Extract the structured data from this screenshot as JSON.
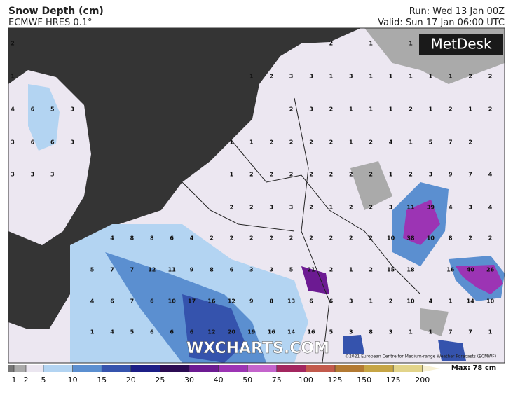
{
  "header": {
    "title": "Snow Depth (cm)",
    "model": "ECMWF HRES 0.1°",
    "run": "Run: Wed 13 Jan 00Z",
    "valid": "Valid: Sun 17 Jan 06:00 UTC"
  },
  "logo": "MetDesk",
  "watermark": "WXCHARTS.COM",
  "copyright": "©2021 European Centre for Medium-range Weather Forecasts (ECMWF)",
  "max_label": "Max: 78 cm",
  "scale": {
    "ticks": [
      1,
      2,
      5,
      10,
      15,
      20,
      25,
      30,
      40,
      50,
      75,
      100,
      125,
      150,
      175,
      200
    ],
    "colors": [
      "#777777",
      "#aaaaaa",
      "#ebe6f0",
      "#b3d4f2",
      "#5b8fd0",
      "#3553ad",
      "#1c1e86",
      "#2b0b52",
      "#6c1a92",
      "#9c34b4",
      "#c464cc",
      "#a3265f",
      "#c25a4c",
      "#b37a33",
      "#c6a545",
      "#e2d48a",
      "#f7f0d2"
    ]
  },
  "grid": {
    "rows": [
      [
        2,
        null,
        null,
        null,
        null,
        null,
        null,
        null,
        null,
        null,
        null,
        null,
        null,
        null,
        null,
        null,
        2,
        null,
        1,
        null,
        1,
        null,
        null,
        null,
        null
      ],
      [
        1,
        null,
        null,
        null,
        null,
        null,
        null,
        null,
        null,
        null,
        null,
        null,
        1,
        2,
        3,
        3,
        1,
        3,
        1,
        1,
        1,
        1,
        1,
        2,
        2
      ],
      [
        4,
        6,
        5,
        3,
        null,
        null,
        null,
        null,
        null,
        null,
        null,
        null,
        null,
        null,
        2,
        3,
        2,
        1,
        1,
        1,
        2,
        1,
        2,
        1,
        2
      ],
      [
        3,
        6,
        6,
        3,
        null,
        null,
        null,
        null,
        null,
        null,
        null,
        1,
        1,
        2,
        2,
        2,
        2,
        1,
        2,
        4,
        1,
        5,
        7,
        2,
        null
      ],
      [
        3,
        3,
        3,
        null,
        null,
        null,
        null,
        null,
        null,
        null,
        null,
        1,
        2,
        2,
        2,
        2,
        2,
        2,
        2,
        1,
        2,
        3,
        9,
        7,
        4
      ],
      [
        null,
        null,
        null,
        null,
        null,
        null,
        null,
        null,
        null,
        null,
        null,
        2,
        2,
        3,
        3,
        2,
        1,
        2,
        2,
        3,
        11,
        39,
        4,
        3,
        4
      ],
      [
        null,
        null,
        null,
        null,
        null,
        4,
        8,
        8,
        6,
        4,
        2,
        2,
        2,
        2,
        2,
        2,
        2,
        2,
        2,
        10,
        38,
        10,
        8,
        2,
        2
      ],
      [
        null,
        null,
        null,
        null,
        5,
        7,
        7,
        12,
        11,
        9,
        8,
        6,
        3,
        3,
        5,
        21,
        2,
        1,
        2,
        15,
        18,
        null,
        16,
        40,
        26
      ],
      [
        null,
        null,
        null,
        null,
        4,
        6,
        7,
        6,
        10,
        17,
        16,
        12,
        9,
        8,
        13,
        6,
        6,
        3,
        1,
        2,
        10,
        4,
        1,
        14,
        10
      ],
      [
        null,
        null,
        null,
        null,
        1,
        4,
        5,
        6,
        6,
        6,
        12,
        20,
        19,
        16,
        14,
        16,
        5,
        3,
        8,
        3,
        1,
        1,
        7,
        7,
        1
      ]
    ]
  }
}
